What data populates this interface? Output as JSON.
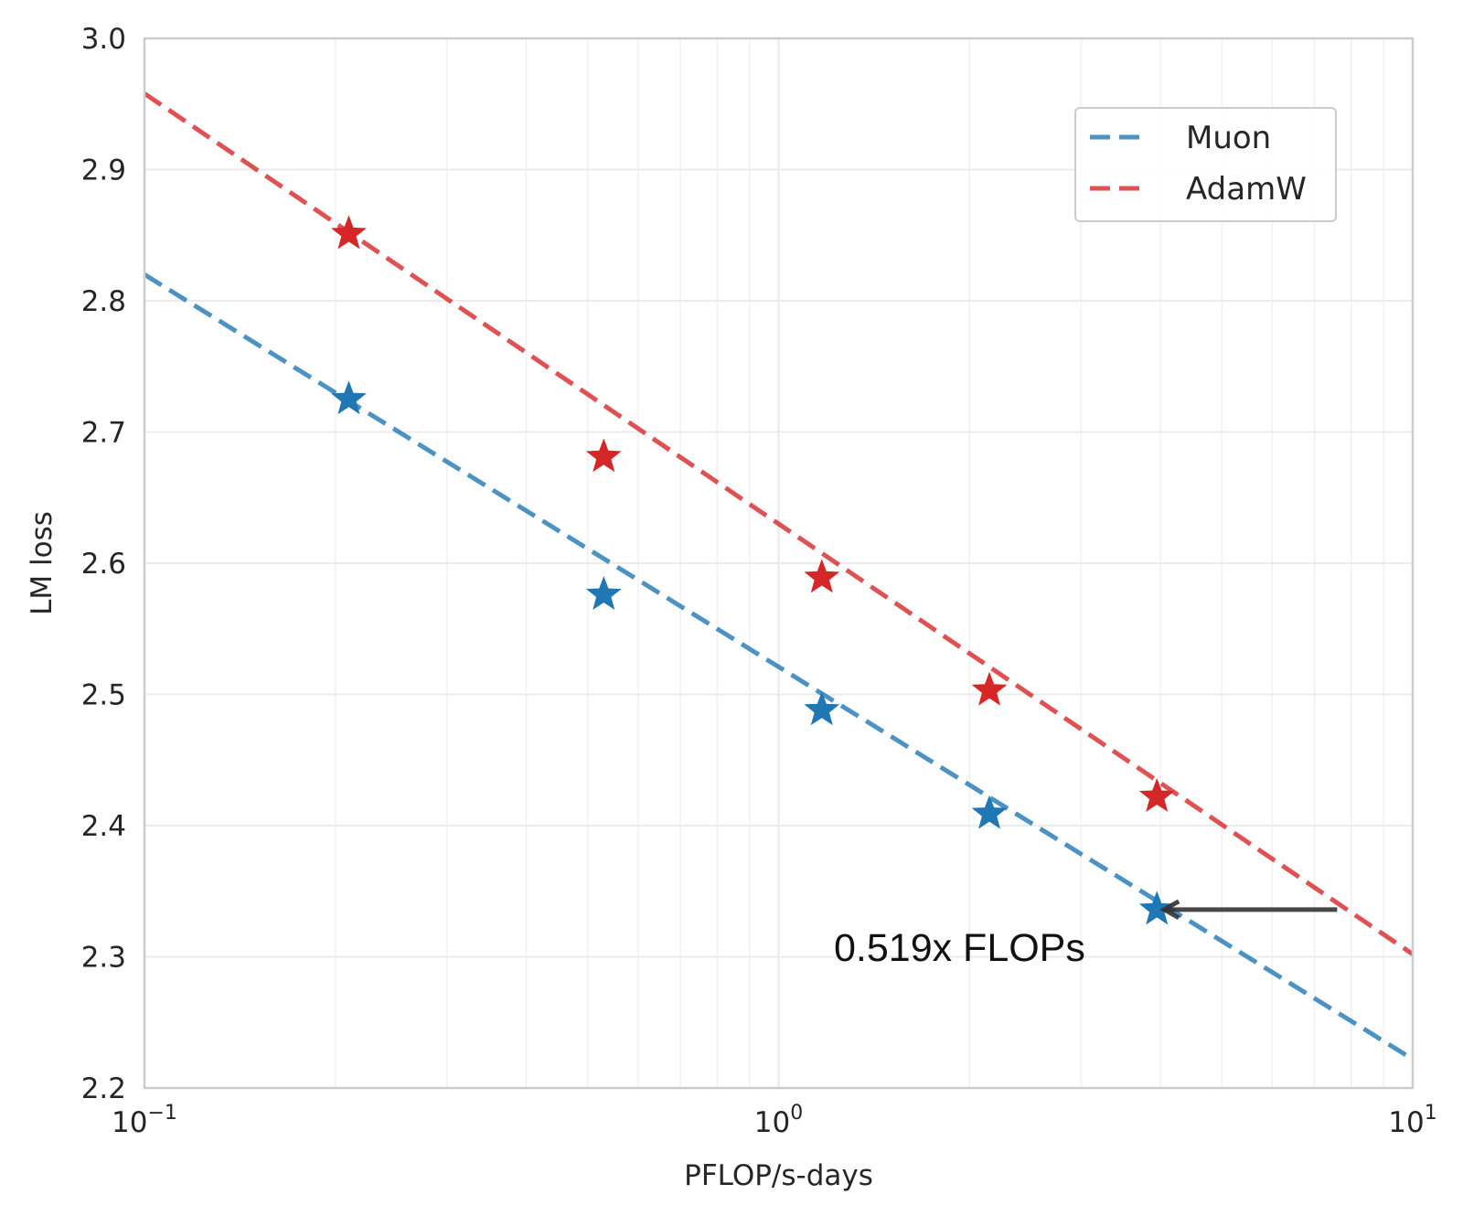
{
  "chart_data": {
    "type": "line",
    "title": "",
    "xlabel": "PFLOP/s-days",
    "ylabel": "LM loss",
    "xscale": "log",
    "xlim": [
      0.1,
      10
    ],
    "ylim": [
      2.2,
      3.0
    ],
    "x_ticks": [
      {
        "value": 0.1,
        "base": "10",
        "exp": "−1"
      },
      {
        "value": 1,
        "base": "10",
        "exp": "0"
      },
      {
        "value": 10,
        "base": "10",
        "exp": "1"
      }
    ],
    "y_ticks": [
      "2.2",
      "2.3",
      "2.4",
      "2.5",
      "2.6",
      "2.7",
      "2.8",
      "2.9",
      "3.0"
    ],
    "grid": true,
    "legend_position": "top-right",
    "series": [
      {
        "name": "Muon",
        "color": "#1f77b4",
        "fit_line": [
          [
            0.1,
            2.82
          ],
          [
            10,
            2.222
          ]
        ],
        "points": [
          [
            0.21,
            2.725
          ],
          [
            0.53,
            2.576
          ],
          [
            1.17,
            2.488
          ],
          [
            2.15,
            2.409
          ],
          [
            3.95,
            2.336
          ]
        ]
      },
      {
        "name": "AdamW",
        "color": "#d62728",
        "fit_line": [
          [
            0.1,
            2.958
          ],
          [
            10,
            2.302
          ]
        ],
        "points": [
          [
            0.21,
            2.851
          ],
          [
            0.53,
            2.681
          ],
          [
            1.17,
            2.589
          ],
          [
            2.15,
            2.503
          ],
          [
            3.95,
            2.422
          ]
        ]
      }
    ],
    "annotation": {
      "text": "0.519x FLOPs",
      "arrow_from": [
        7.6,
        2.336
      ],
      "arrow_to": [
        3.95,
        2.336
      ]
    }
  }
}
